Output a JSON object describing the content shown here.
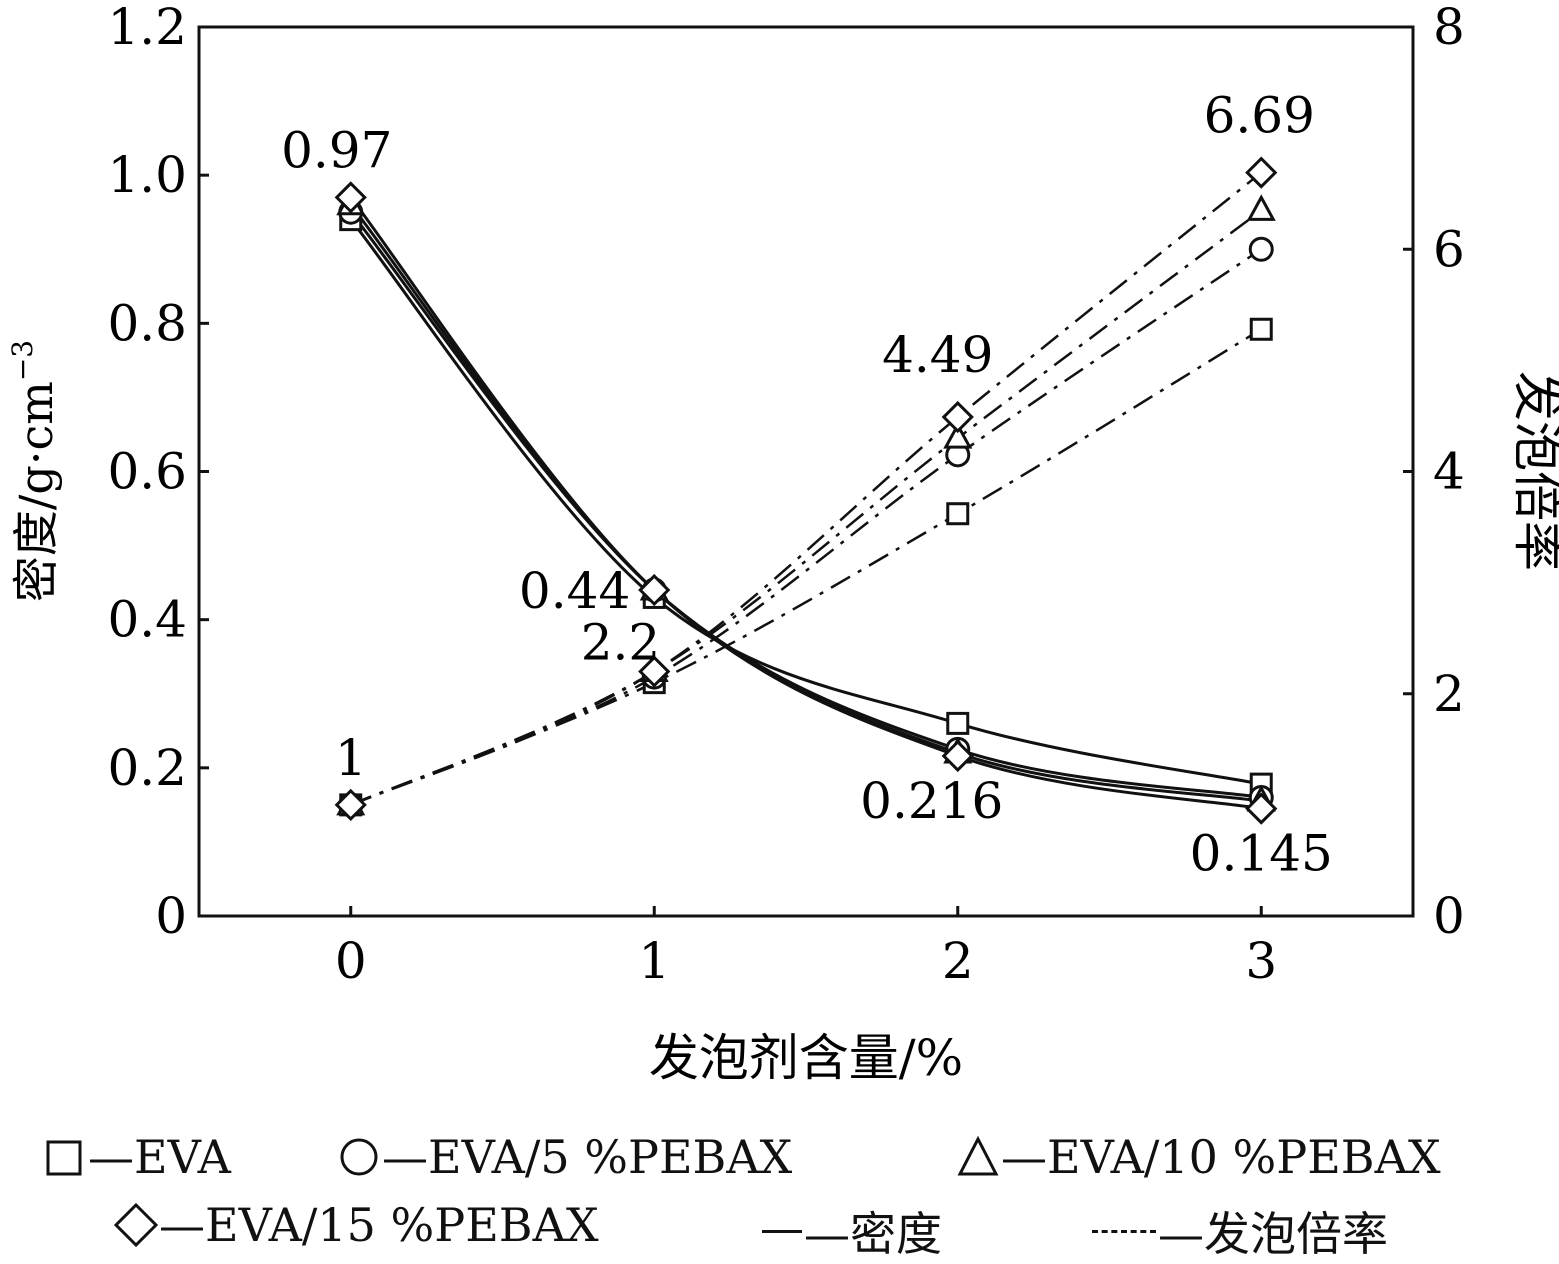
{
  "chart_data": {
    "type": "line",
    "title": "",
    "xlabel": "发泡剂含量/%",
    "ylabel_left": "密度/g·cm",
    "ylabel_left_sup": "−3",
    "ylabel_right": "发泡倍率",
    "x": [
      0,
      1,
      2,
      3
    ],
    "x_ticks": [
      "0",
      "1",
      "2",
      "3"
    ],
    "xlim": [
      -0.5,
      3.5
    ],
    "ylim_left": [
      0,
      1.2
    ],
    "y_ticks_left": [
      "0",
      "0.2",
      "0.4",
      "0.6",
      "0.8",
      "1.0",
      "1.2"
    ],
    "ylim_right": [
      0,
      8
    ],
    "y_ticks_right": [
      "0",
      "2",
      "4",
      "6",
      "8"
    ],
    "grid": false,
    "legend_position": "bottom",
    "marker_legend": [
      {
        "marker": "square",
        "label": "—EVA"
      },
      {
        "marker": "circle",
        "label": "—EVA/5 %PEBAX"
      },
      {
        "marker": "triangle",
        "label": "—EVA/10 %PEBAX"
      },
      {
        "marker": "diamond",
        "label": "—EVA/15 %PEBAX"
      }
    ],
    "line_legend": [
      {
        "style": "solid",
        "label": "—密度"
      },
      {
        "style": "dashed",
        "label": "—发泡倍率"
      }
    ],
    "series": [
      {
        "name": "EVA",
        "marker": "square",
        "axis": "left",
        "style": "solid",
        "values": [
          0.94,
          0.43,
          0.26,
          0.178
        ]
      },
      {
        "name": "EVA/5 %PEBAX",
        "marker": "circle",
        "axis": "left",
        "style": "solid",
        "values": [
          0.95,
          0.44,
          0.225,
          0.16
        ]
      },
      {
        "name": "EVA/10 %PEBAX",
        "marker": "triangle",
        "axis": "left",
        "style": "solid",
        "values": [
          0.96,
          0.44,
          0.22,
          0.155
        ]
      },
      {
        "name": "EVA/15 %PEBAX",
        "marker": "diamond",
        "axis": "left",
        "style": "solid",
        "values": [
          0.97,
          0.44,
          0.216,
          0.145
        ]
      },
      {
        "name": "EVA",
        "marker": "square",
        "axis": "right",
        "style": "dashdot",
        "values": [
          1,
          2.1,
          3.62,
          5.28
        ]
      },
      {
        "name": "EVA/5 %PEBAX",
        "marker": "circle",
        "axis": "right",
        "style": "dashdot",
        "values": [
          1,
          2.15,
          4.15,
          6.0
        ]
      },
      {
        "name": "EVA/10 %PEBAX",
        "marker": "triangle",
        "axis": "right",
        "style": "dashdot",
        "values": [
          1,
          2.2,
          4.3,
          6.35
        ]
      },
      {
        "name": "EVA/15 %PEBAX",
        "marker": "diamond",
        "axis": "right",
        "style": "dashdot",
        "values": [
          1,
          2.2,
          4.49,
          6.69
        ]
      }
    ],
    "annotations": [
      {
        "text": "0.97",
        "x": 0,
        "y": 0.97,
        "axis": "left",
        "pos": "above"
      },
      {
        "text": "0.44",
        "x": 1,
        "y": 0.44,
        "axis": "left",
        "pos": "left"
      },
      {
        "text": "0.216",
        "x": 2,
        "y": 0.216,
        "axis": "left",
        "pos": "below"
      },
      {
        "text": "0.145",
        "x": 3,
        "y": 0.145,
        "axis": "left",
        "pos": "below"
      },
      {
        "text": "1",
        "x": 0,
        "y": 1,
        "axis": "right",
        "pos": "above"
      },
      {
        "text": "2.2",
        "x": 1,
        "y": 2.2,
        "axis": "right",
        "pos": "aboveleft"
      },
      {
        "text": "4.49",
        "x": 2,
        "y": 4.49,
        "axis": "right",
        "pos": "above"
      },
      {
        "text": "6.69",
        "x": 3,
        "y": 6.69,
        "axis": "right",
        "pos": "above"
      }
    ]
  }
}
